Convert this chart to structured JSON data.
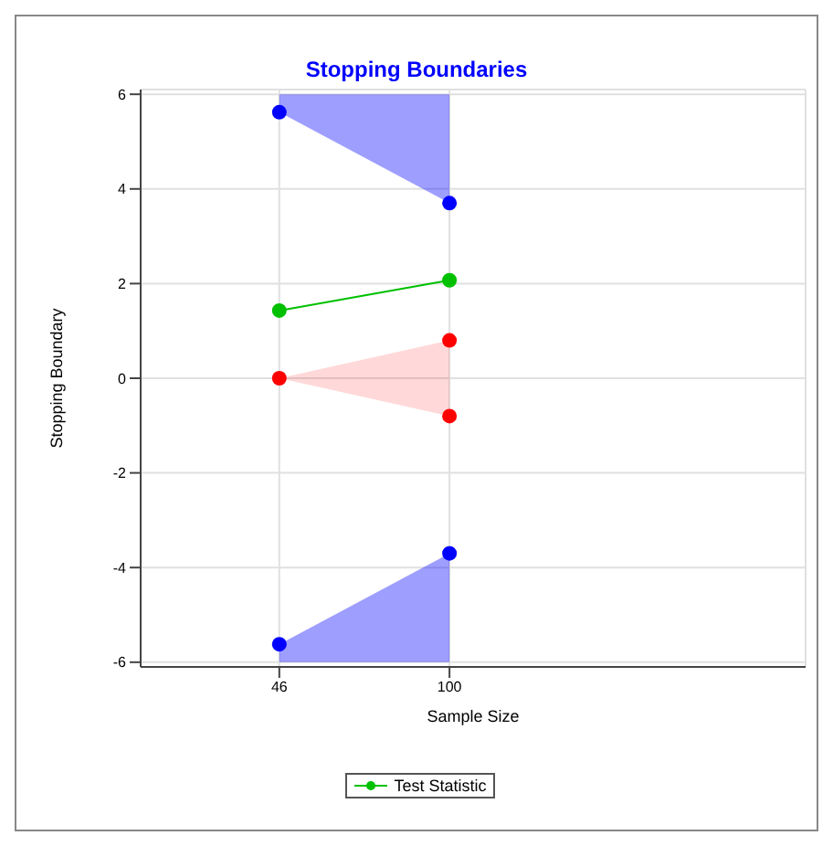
{
  "chart_data": {
    "type": "scatter",
    "title": "Stopping Boundaries",
    "xlabel": "Sample Size",
    "ylabel": "Stopping Boundary",
    "x": [
      46,
      100
    ],
    "series": [
      {
        "color": "#0000ff",
        "values": [
          5.62,
          3.7
        ],
        "lower": [
          5.62,
          3.7
        ],
        "upper": [
          6,
          6
        ]
      },
      {
        "color": "#0000ff",
        "values": [
          -5.62,
          -3.7
        ],
        "lower": [
          -6,
          -6
        ],
        "upper": [
          -5.62,
          -3.7
        ]
      },
      {
        "color": "#ff0000",
        "values": [
          0,
          0.8
        ],
        "lower": [
          0,
          -0.8
        ],
        "upper": [
          0,
          0.8
        ]
      },
      {
        "color": "#ff0000",
        "values": [
          null,
          -0.8
        ]
      },
      {
        "type": "line",
        "name": "Test Statistic",
        "color": "#00c000",
        "values": [
          1.43,
          2.07
        ]
      }
    ],
    "xlim": [
      2,
      213
    ],
    "xticks": [
      46,
      100
    ],
    "ylim": [
      -6.1,
      6.1
    ],
    "yticks": [
      -6,
      -4,
      -2,
      0,
      2,
      4,
      6
    ],
    "grid": true,
    "legend": "bottom",
    "marker": "circle",
    "line_style": "solid"
  }
}
